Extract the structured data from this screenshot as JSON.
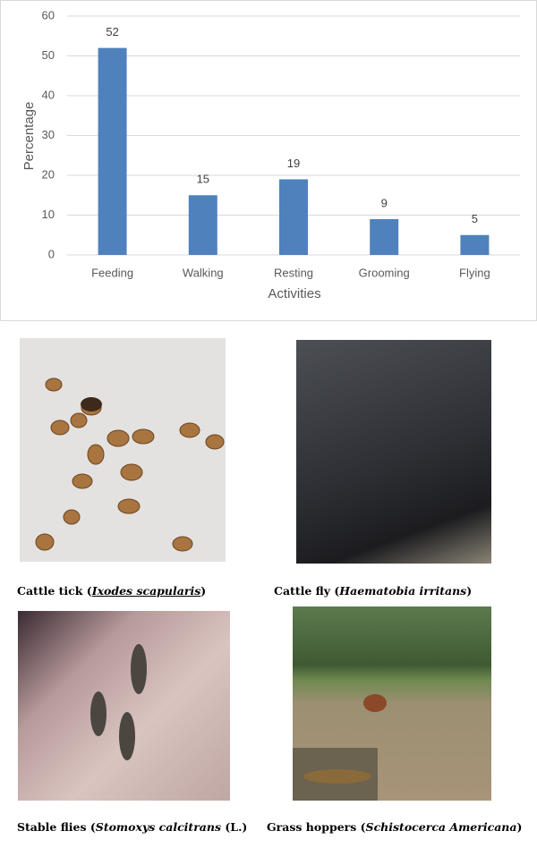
{
  "chart_data": {
    "type": "bar",
    "x_label": "Activities",
    "y_label": "Percentage",
    "categories": [
      "Feeding",
      "Walking",
      "Resting",
      "Grooming",
      "Flying"
    ],
    "values": [
      52,
      15,
      19,
      9,
      5
    ],
    "color": "#4f81bd",
    "ylim": [
      0,
      60
    ],
    "yticks": [
      0,
      10,
      20,
      30,
      40,
      50,
      60
    ],
    "grid": true
  },
  "figures": [
    {
      "prefix": "Cattle tick (",
      "species": "Ixodes scapularis",
      "suffix": ")"
    },
    {
      "prefix": "Cattle fly (",
      "species": "Haematobia irritans",
      "suffix": ")"
    },
    {
      "prefix": "Stable flies (",
      "species": "Stomoxys calcitrans",
      "suffix": " (L.)"
    },
    {
      "prefix": "Grass hoppers (",
      "species": "Schistocerca Americana",
      "suffix": ")"
    }
  ]
}
